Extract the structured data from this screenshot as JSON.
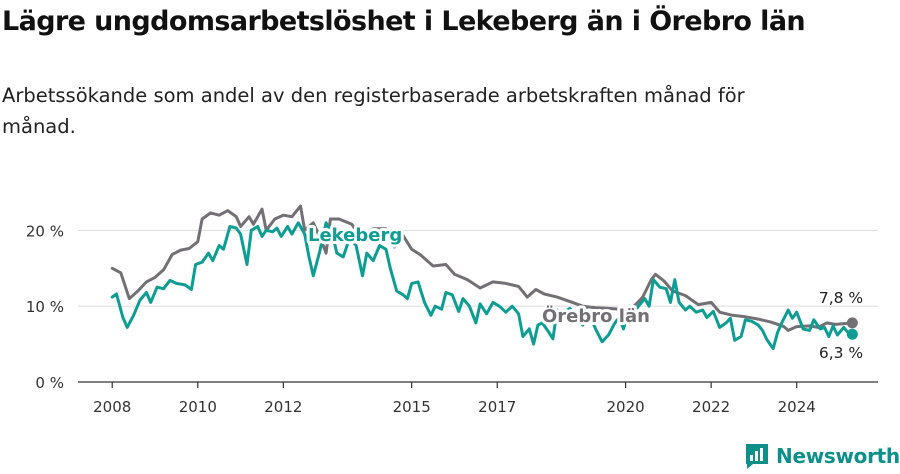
{
  "title": "Lägre ungdomsarbetslöshet i Lekeberg än i Örebro län",
  "subtitle": "Arbetssökande som andel av den registerbaserade arbetskraften månad för månad.",
  "brand": {
    "name": "Newsworthy",
    "icon": "newsworthy-logo-icon"
  },
  "colors": {
    "lekeberg": "#0d9d93",
    "orebro": "#737075",
    "grid": "#dcdcdc",
    "axis": "#333333"
  },
  "chart_data": {
    "type": "line",
    "ylim": [
      0,
      24
    ],
    "y_ticks": [
      0,
      10,
      20
    ],
    "y_tick_labels": [
      "0 %",
      "10 %",
      "20 %"
    ],
    "x_ticks": [
      2008,
      2010,
      2012,
      2015,
      2017,
      2020,
      2022,
      2024
    ],
    "x_tick_labels": [
      "2008",
      "2010",
      "2012",
      "2015",
      "2017",
      "2020",
      "2022",
      "2024"
    ],
    "xlim": [
      2007.2,
      2025.9
    ],
    "grid": true,
    "series": [
      {
        "name": "Örebro län",
        "end_label": "7,8 %",
        "points": [
          [
            2008.0,
            15.0
          ],
          [
            2008.2,
            14.4
          ],
          [
            2008.4,
            11.0
          ],
          [
            2008.6,
            12.0
          ],
          [
            2008.8,
            13.2
          ],
          [
            2009.0,
            13.8
          ],
          [
            2009.2,
            14.8
          ],
          [
            2009.4,
            16.8
          ],
          [
            2009.6,
            17.4
          ],
          [
            2009.8,
            17.6
          ],
          [
            2010.0,
            18.5
          ],
          [
            2010.1,
            21.5
          ],
          [
            2010.3,
            22.3
          ],
          [
            2010.5,
            22.0
          ],
          [
            2010.7,
            22.6
          ],
          [
            2010.9,
            21.8
          ],
          [
            2011.0,
            20.5
          ],
          [
            2011.2,
            21.8
          ],
          [
            2011.3,
            20.8
          ],
          [
            2011.5,
            22.8
          ],
          [
            2011.6,
            20.0
          ],
          [
            2011.8,
            21.5
          ],
          [
            2012.0,
            22.0
          ],
          [
            2012.2,
            21.8
          ],
          [
            2012.4,
            23.2
          ],
          [
            2012.5,
            20.0
          ],
          [
            2012.7,
            21.0
          ],
          [
            2012.9,
            18.5
          ],
          [
            2013.0,
            17.0
          ],
          [
            2013.1,
            21.5
          ],
          [
            2013.3,
            21.5
          ],
          [
            2013.6,
            20.8
          ],
          [
            2013.8,
            19.2
          ],
          [
            2014.1,
            20.2
          ],
          [
            2014.4,
            20.2
          ],
          [
            2014.6,
            17.8
          ],
          [
            2014.8,
            19.3
          ],
          [
            2015.0,
            17.5
          ],
          [
            2015.2,
            16.8
          ],
          [
            2015.5,
            15.3
          ],
          [
            2015.8,
            15.5
          ],
          [
            2016.0,
            14.2
          ],
          [
            2016.3,
            13.5
          ],
          [
            2016.6,
            12.4
          ],
          [
            2016.9,
            13.2
          ],
          [
            2017.2,
            13.0
          ],
          [
            2017.5,
            12.6
          ],
          [
            2017.7,
            11.2
          ],
          [
            2017.9,
            12.2
          ],
          [
            2018.1,
            11.6
          ],
          [
            2018.4,
            11.2
          ],
          [
            2018.7,
            10.6
          ],
          [
            2019.0,
            10.0
          ],
          [
            2019.3,
            9.8
          ],
          [
            2019.6,
            9.7
          ],
          [
            2019.9,
            9.6
          ],
          [
            2020.2,
            10.0
          ],
          [
            2020.4,
            11.2
          ],
          [
            2020.6,
            13.5
          ],
          [
            2020.7,
            14.2
          ],
          [
            2020.9,
            13.3
          ],
          [
            2021.1,
            12.0
          ],
          [
            2021.4,
            11.4
          ],
          [
            2021.7,
            10.2
          ],
          [
            2022.0,
            10.5
          ],
          [
            2022.2,
            9.2
          ],
          [
            2022.5,
            8.8
          ],
          [
            2022.8,
            8.6
          ],
          [
            2023.1,
            8.3
          ],
          [
            2023.4,
            7.9
          ],
          [
            2023.7,
            7.3
          ],
          [
            2023.8,
            6.8
          ],
          [
            2024.0,
            7.3
          ],
          [
            2024.3,
            7.4
          ],
          [
            2024.5,
            7.2
          ],
          [
            2024.7,
            7.8
          ],
          [
            2024.9,
            7.6
          ],
          [
            2025.1,
            7.7
          ],
          [
            2025.3,
            7.8
          ]
        ]
      },
      {
        "name": "Lekeberg",
        "end_label": "6,3 %",
        "points": [
          [
            2008.0,
            11.2
          ],
          [
            2008.1,
            11.6
          ],
          [
            2008.25,
            8.5
          ],
          [
            2008.35,
            7.2
          ],
          [
            2008.5,
            8.8
          ],
          [
            2008.65,
            10.8
          ],
          [
            2008.8,
            11.8
          ],
          [
            2008.9,
            10.5
          ],
          [
            2009.05,
            12.5
          ],
          [
            2009.2,
            12.3
          ],
          [
            2009.35,
            13.4
          ],
          [
            2009.5,
            13.0
          ],
          [
            2009.7,
            12.8
          ],
          [
            2009.85,
            12.2
          ],
          [
            2009.95,
            15.5
          ],
          [
            2010.1,
            15.8
          ],
          [
            2010.25,
            17.0
          ],
          [
            2010.35,
            16.0
          ],
          [
            2010.5,
            18.0
          ],
          [
            2010.6,
            17.5
          ],
          [
            2010.75,
            20.5
          ],
          [
            2010.9,
            20.3
          ],
          [
            2011.0,
            19.5
          ],
          [
            2011.15,
            15.5
          ],
          [
            2011.25,
            20.0
          ],
          [
            2011.4,
            20.5
          ],
          [
            2011.5,
            19.2
          ],
          [
            2011.6,
            20.0
          ],
          [
            2011.75,
            19.8
          ],
          [
            2011.85,
            20.3
          ],
          [
            2011.95,
            19.2
          ],
          [
            2012.1,
            20.5
          ],
          [
            2012.2,
            19.5
          ],
          [
            2012.35,
            21.0
          ],
          [
            2012.5,
            19.5
          ],
          [
            2012.6,
            16.5
          ],
          [
            2012.7,
            14.0
          ],
          [
            2012.85,
            17.2
          ],
          [
            2013.0,
            21.0
          ],
          [
            2013.15,
            19.5
          ],
          [
            2013.25,
            17.0
          ],
          [
            2013.4,
            16.5
          ],
          [
            2013.55,
            19.0
          ],
          [
            2013.7,
            18.0
          ],
          [
            2013.85,
            14.0
          ],
          [
            2013.95,
            17.0
          ],
          [
            2014.1,
            16.0
          ],
          [
            2014.25,
            18.0
          ],
          [
            2014.4,
            17.5
          ],
          [
            2014.5,
            15.0
          ],
          [
            2014.65,
            12.0
          ],
          [
            2014.8,
            11.5
          ],
          [
            2014.9,
            11.0
          ],
          [
            2015.0,
            13.0
          ],
          [
            2015.15,
            13.2
          ],
          [
            2015.3,
            10.5
          ],
          [
            2015.45,
            8.8
          ],
          [
            2015.55,
            10.0
          ],
          [
            2015.7,
            9.6
          ],
          [
            2015.8,
            11.8
          ],
          [
            2015.95,
            11.5
          ],
          [
            2016.1,
            9.3
          ],
          [
            2016.2,
            11.0
          ],
          [
            2016.35,
            10.0
          ],
          [
            2016.5,
            7.8
          ],
          [
            2016.6,
            10.3
          ],
          [
            2016.75,
            9.0
          ],
          [
            2016.9,
            10.5
          ],
          [
            2017.05,
            10.0
          ],
          [
            2017.2,
            9.2
          ],
          [
            2017.35,
            10.0
          ],
          [
            2017.5,
            9.0
          ],
          [
            2017.6,
            6.0
          ],
          [
            2017.75,
            7.0
          ],
          [
            2017.85,
            5.0
          ],
          [
            2017.95,
            7.5
          ],
          [
            2018.05,
            7.8
          ],
          [
            2018.2,
            6.6
          ],
          [
            2018.3,
            5.7
          ],
          [
            2018.4,
            9.5
          ],
          [
            2018.55,
            9.2
          ],
          [
            2018.7,
            9.7
          ],
          [
            2018.85,
            8.2
          ],
          [
            2019.0,
            7.5
          ],
          [
            2019.1,
            9.5
          ],
          [
            2019.2,
            8.3
          ],
          [
            2019.3,
            7.0
          ],
          [
            2019.45,
            5.3
          ],
          [
            2019.6,
            6.2
          ],
          [
            2019.75,
            7.8
          ],
          [
            2019.85,
            8.5
          ],
          [
            2019.95,
            7.0
          ],
          [
            2020.1,
            10.0
          ],
          [
            2020.2,
            9.2
          ],
          [
            2020.3,
            10.0
          ],
          [
            2020.45,
            11.0
          ],
          [
            2020.55,
            10.0
          ],
          [
            2020.65,
            13.5
          ],
          [
            2020.8,
            12.5
          ],
          [
            2020.95,
            12.3
          ],
          [
            2021.05,
            10.5
          ],
          [
            2021.15,
            13.5
          ],
          [
            2021.25,
            10.5
          ],
          [
            2021.4,
            9.5
          ],
          [
            2021.5,
            10.0
          ],
          [
            2021.65,
            9.2
          ],
          [
            2021.8,
            9.5
          ],
          [
            2021.9,
            8.5
          ],
          [
            2022.05,
            9.3
          ],
          [
            2022.2,
            7.2
          ],
          [
            2022.35,
            7.8
          ],
          [
            2022.45,
            8.4
          ],
          [
            2022.55,
            5.5
          ],
          [
            2022.7,
            6.0
          ],
          [
            2022.8,
            8.2
          ],
          [
            2022.95,
            8.0
          ],
          [
            2023.1,
            7.5
          ],
          [
            2023.2,
            6.8
          ],
          [
            2023.3,
            5.6
          ],
          [
            2023.45,
            4.4
          ],
          [
            2023.55,
            6.5
          ],
          [
            2023.65,
            7.8
          ],
          [
            2023.8,
            9.5
          ],
          [
            2023.9,
            8.4
          ],
          [
            2024.0,
            9.2
          ],
          [
            2024.15,
            7.0
          ],
          [
            2024.3,
            6.8
          ],
          [
            2024.4,
            8.2
          ],
          [
            2024.55,
            7.0
          ],
          [
            2024.65,
            7.2
          ],
          [
            2024.75,
            6.0
          ],
          [
            2024.85,
            7.4
          ],
          [
            2024.95,
            6.2
          ],
          [
            2025.1,
            7.2
          ],
          [
            2025.2,
            6.5
          ],
          [
            2025.3,
            6.3
          ]
        ]
      }
    ]
  }
}
